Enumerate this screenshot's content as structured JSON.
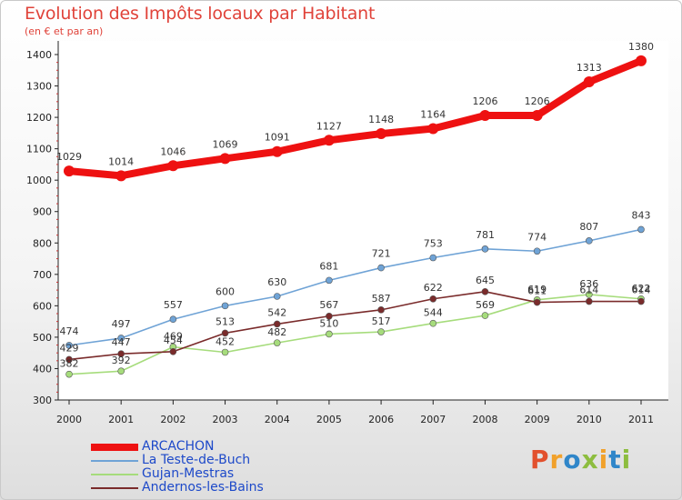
{
  "title": "Evolution des Impôts locaux par Habitant",
  "subtitle": "(en € et par an)",
  "logo": "Proxiti",
  "chart_data": {
    "type": "line",
    "title": "Evolution des Impôts locaux par Habitant",
    "subtitle": "(en € et par an)",
    "xlabel": "",
    "ylabel": "",
    "ylim": [
      300,
      1400
    ],
    "yticks": [
      300,
      400,
      500,
      600,
      700,
      800,
      900,
      1000,
      1100,
      1200,
      1300,
      1400
    ],
    "grid": false,
    "legend_position": "bottom-left",
    "x": [
      "2000",
      "2001",
      "2002",
      "2003",
      "2004",
      "2005",
      "2006",
      "2007",
      "2008",
      "2009",
      "2010",
      "2011"
    ],
    "series": [
      {
        "name": "ARCACHON",
        "color": "#ee1111",
        "values": [
          1029,
          1014,
          1046,
          1069,
          1091,
          1127,
          1148,
          1164,
          1206,
          1206,
          1313,
          1380
        ]
      },
      {
        "name": "La Teste-de-Buch",
        "color": "#6fa3d6",
        "values": [
          474,
          497,
          557,
          600,
          630,
          681,
          721,
          753,
          781,
          774,
          807,
          843
        ]
      },
      {
        "name": "Gujan-Mestras",
        "color": "#a6dc7c",
        "values": [
          382,
          392,
          469,
          452,
          482,
          510,
          517,
          544,
          569,
          619,
          636,
          622
        ]
      },
      {
        "name": "Andernos-les-Bains",
        "color": "#7a2b2b",
        "values": [
          429,
          447,
          454,
          513,
          542,
          567,
          587,
          622,
          645,
          611,
          614,
          614
        ]
      }
    ]
  }
}
